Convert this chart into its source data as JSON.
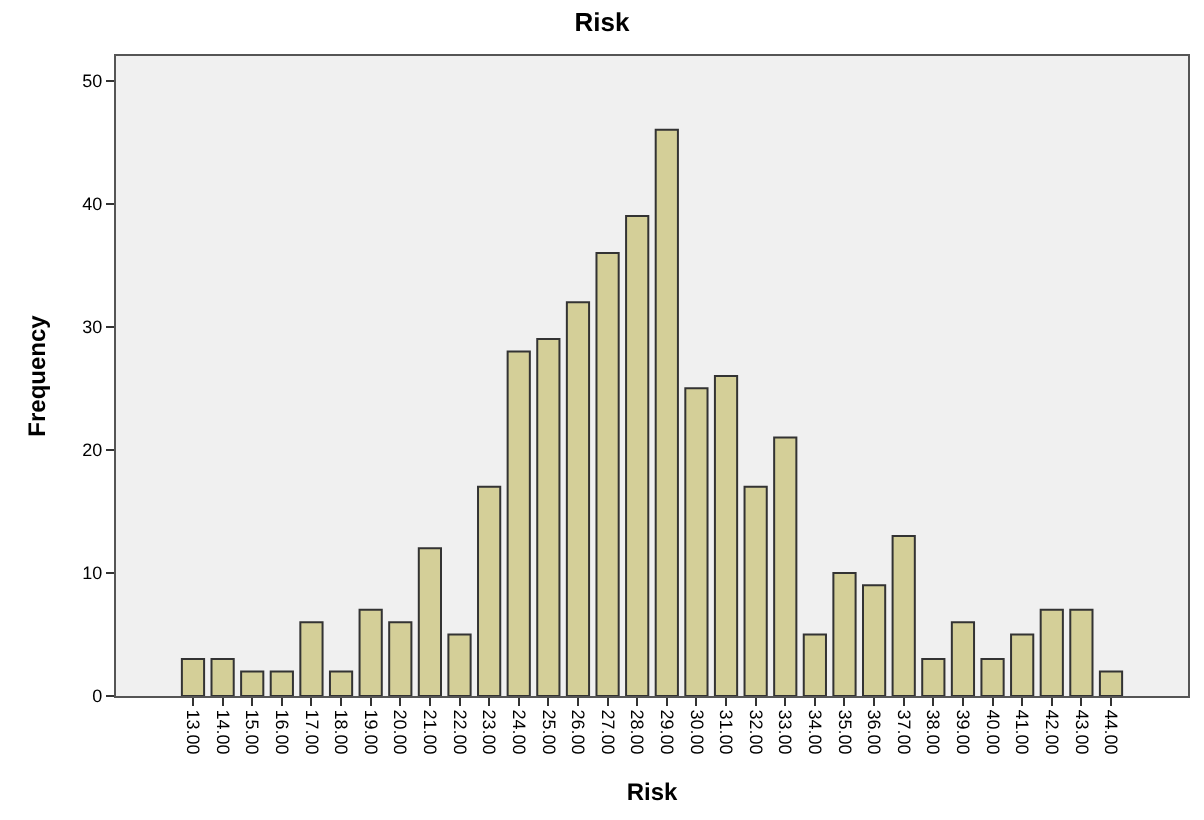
{
  "chart_data": {
    "type": "bar",
    "title": "Risk",
    "xlabel": "Risk",
    "ylabel": "Frequency",
    "categories": [
      "13.00",
      "14.00",
      "15.00",
      "16.00",
      "17.00",
      "18.00",
      "19.00",
      "20.00",
      "21.00",
      "22.00",
      "23.00",
      "24.00",
      "25.00",
      "26.00",
      "27.00",
      "28.00",
      "29.00",
      "30.00",
      "31.00",
      "32.00",
      "33.00",
      "34.00",
      "35.00",
      "36.00",
      "37.00",
      "38.00",
      "39.00",
      "40.00",
      "41.00",
      "42.00",
      "43.00",
      "44.00"
    ],
    "values": [
      3,
      3,
      2,
      2,
      6,
      2,
      7,
      6,
      12,
      5,
      17,
      28,
      29,
      32,
      36,
      39,
      46,
      25,
      26,
      17,
      21,
      5,
      10,
      9,
      13,
      3,
      6,
      3,
      5,
      7,
      7,
      2
    ],
    "color": "#d4cf98",
    "ylim": [
      0,
      52
    ],
    "yticks": [
      0,
      10,
      20,
      30,
      40,
      50
    ],
    "grid": false
  }
}
